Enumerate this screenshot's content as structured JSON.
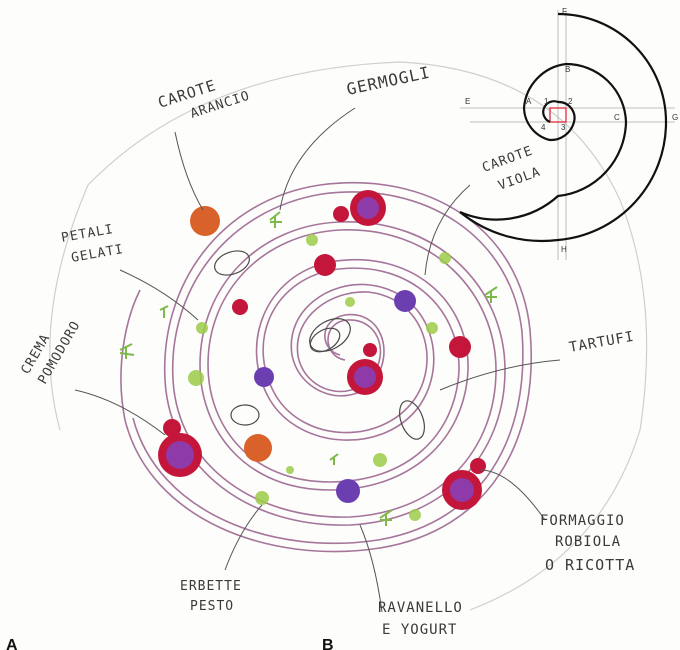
{
  "labels": {
    "carote_arancio_1": "CAROTE",
    "carote_arancio_2": "ARANCIO",
    "germogli": "GERMOGLI",
    "carote_viola_1": "CAROTE",
    "carote_viola_2": "VIOLA",
    "petali_1": "PETALI",
    "petali_2": "GELATI",
    "crema_1": "CREMA",
    "crema_2": "POMODORO",
    "tartufi": "TARTUFI",
    "erbette": "ERBETTE",
    "pesto": "PESTO",
    "formaggio_1": "FORMAGGIO",
    "formaggio_2": "ROBIOLA",
    "formaggio_3": "O RICOTTA",
    "ravanello_1": "RAVANELLO",
    "ravanello_2": "E YOGURT"
  },
  "spiral_points": {
    "A": "A",
    "B": "B",
    "C": "C",
    "E": "E",
    "F": "F",
    "G": "G",
    "H": "H",
    "n1": "1",
    "n2": "2",
    "n3": "3",
    "n4": "4"
  },
  "panels": {
    "a": "A",
    "b": "B"
  },
  "colors": {
    "spiral_line": "#9b6a8e",
    "orange_carrot": "#d9622b",
    "purple_carrot": "#6b3fb0",
    "tomato": "#c4163a",
    "tomato_inner": "#8e3aa8",
    "green_pea": "#8fc43a",
    "sprout": "#7cb94a",
    "pencil": "#3a3a3a"
  }
}
